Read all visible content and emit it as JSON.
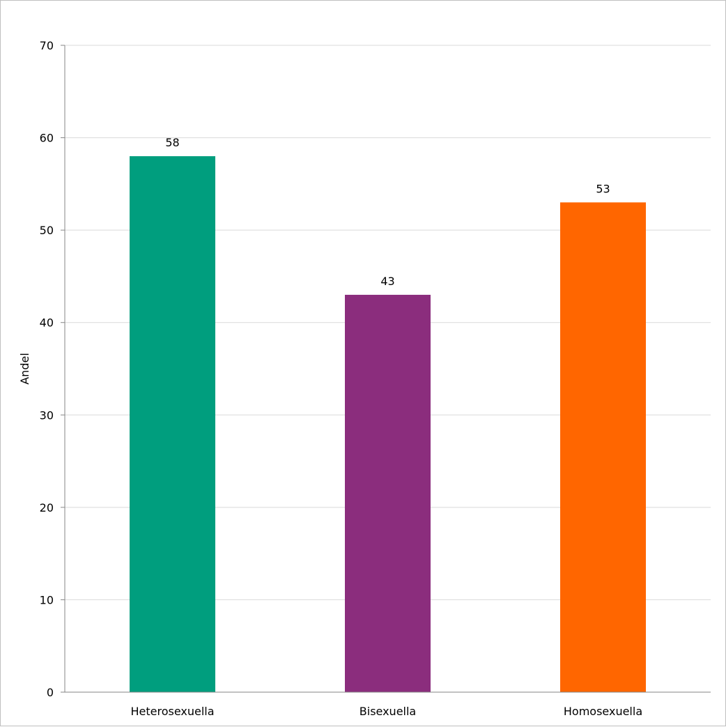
{
  "chart_data": {
    "type": "bar",
    "title": "",
    "xlabel": "",
    "ylabel": "Andel",
    "ylim": [
      0,
      70
    ],
    "yticks": [
      0,
      10,
      20,
      30,
      40,
      50,
      60,
      70
    ],
    "grid": true,
    "legend": "none",
    "categories": [
      "Heterosexuella",
      "Bisexuella",
      "Homosexuella"
    ],
    "values": [
      58,
      43,
      53
    ],
    "colors": [
      "#009E7E",
      "#8B2D7D",
      "#FF6600"
    ]
  }
}
